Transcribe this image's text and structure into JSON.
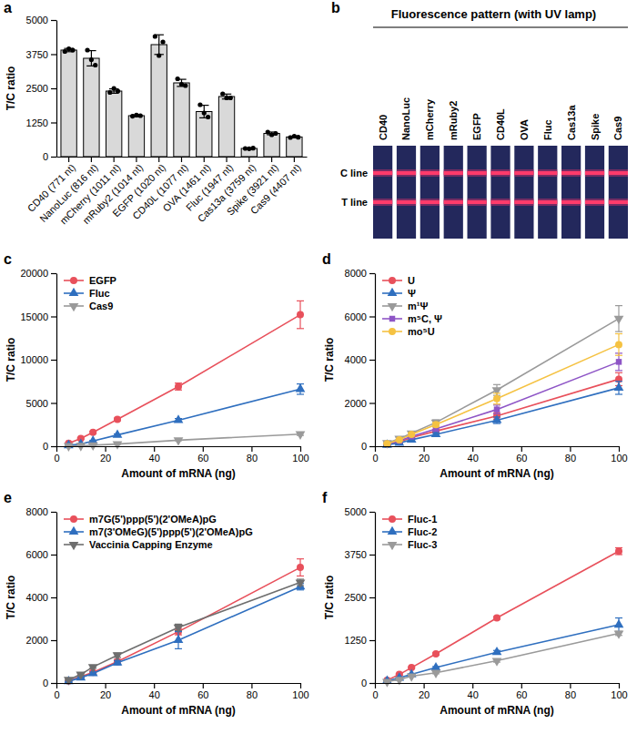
{
  "chart_data": [
    {
      "panel": "a",
      "type": "bar",
      "categories": [
        "CD40 (771 nt)",
        "NanoLuc (816 nt)",
        "mCherry (1011 nt)",
        "mRuby2 (1014 nt)",
        "EGFP (1020 nt)",
        "CD40L (1077 nt)",
        "OVA (1461 nt)",
        "Fluc (1947 nt)",
        "Cas13a (3759 nt)",
        "Spike (3921 nt)",
        "Cas9 (4407 nt)"
      ],
      "values": [
        3900,
        3600,
        2400,
        1500,
        4100,
        2700,
        1650,
        2200,
        300,
        850,
        720
      ],
      "errors": [
        60,
        280,
        80,
        30,
        360,
        130,
        230,
        90,
        15,
        50,
        30
      ],
      "points": [
        [
          3850,
          3950,
          3900
        ],
        [
          3900,
          3550,
          3350
        ],
        [
          2350,
          2500,
          2400
        ],
        [
          1480,
          1520,
          1500
        ],
        [
          4400,
          3700,
          4200
        ],
        [
          2850,
          2650,
          2600
        ],
        [
          1900,
          1600,
          1450
        ],
        [
          2300,
          2150,
          2150
        ],
        [
          300,
          290,
          310
        ],
        [
          900,
          800,
          850
        ],
        [
          700,
          750,
          710
        ]
      ],
      "color": "#d9d9d9",
      "ylabel": "T/C ratio",
      "ylim": [
        0,
        5000
      ],
      "yticks": [
        0,
        1250,
        2500,
        3750,
        5000
      ]
    },
    {
      "panel": "b",
      "type": "strip",
      "title": "Fluorescence pattern (with UV lamp)",
      "categories": [
        "CD40",
        "NanoLuc",
        "mCherry",
        "mRuby2",
        "EGFP",
        "CD40L",
        "OVA",
        "Fluc",
        "Cas13a",
        "Spike",
        "Cas9"
      ],
      "annotations": [
        "C line",
        "T line"
      ]
    },
    {
      "panel": "c",
      "type": "line",
      "xlabel": "Amount of mRNA (ng)",
      "ylabel": "T/C ratio",
      "x": [
        5,
        10,
        15,
        25,
        50,
        100
      ],
      "xlim": [
        0,
        100
      ],
      "xticks": [
        0,
        20,
        40,
        60,
        80,
        100
      ],
      "ylim": [
        0,
        20000
      ],
      "yticks": [
        0,
        5000,
        10000,
        15000,
        20000
      ],
      "legend": "upper left",
      "series": [
        {
          "name": "EGFP",
          "color": "#e8505b",
          "marker": "circle",
          "values": [
            350,
            900,
            1600,
            3100,
            6900,
            15200
          ],
          "errors": [
            40,
            80,
            120,
            150,
            400,
            1600
          ]
        },
        {
          "name": "Fluc",
          "color": "#2f6fbf",
          "marker": "triangle",
          "values": [
            100,
            250,
            600,
            1300,
            3000,
            6600
          ],
          "errors": [
            20,
            40,
            80,
            120,
            200,
            600
          ]
        },
        {
          "name": "Cas9",
          "color": "#9a9a9a",
          "marker": "triangle-down",
          "values": [
            30,
            60,
            120,
            250,
            700,
            1400
          ],
          "errors": [
            10,
            15,
            20,
            40,
            60,
            150
          ]
        }
      ]
    },
    {
      "panel": "d",
      "type": "line",
      "xlabel": "Amount of mRNA (ng)",
      "ylabel": "T/C ratio",
      "x": [
        5,
        10,
        15,
        25,
        50,
        100
      ],
      "xlim": [
        0,
        100
      ],
      "xticks": [
        0,
        20,
        40,
        60,
        80,
        100
      ],
      "ylim": [
        0,
        8000
      ],
      "yticks": [
        0,
        2000,
        4000,
        6000,
        8000
      ],
      "legend": "upper left",
      "series": [
        {
          "name": "U",
          "color": "#e8505b",
          "marker": "circle",
          "values": [
            80,
            200,
            400,
            700,
            1400,
            3100
          ],
          "errors": [
            20,
            30,
            50,
            80,
            150,
            300
          ]
        },
        {
          "name": "Ψ",
          "color": "#2f6fbf",
          "marker": "triangle",
          "values": [
            60,
            150,
            300,
            550,
            1200,
            2700
          ],
          "errors": [
            20,
            30,
            50,
            80,
            150,
            300
          ]
        },
        {
          "name": "m¹Ψ",
          "color": "#9a9a9a",
          "marker": "triangle-down",
          "values": [
            150,
            350,
            600,
            1100,
            2600,
            5900
          ],
          "errors": [
            30,
            50,
            80,
            120,
            250,
            600
          ]
        },
        {
          "name": "m⁵C, Ψ",
          "color": "#8e55c6",
          "marker": "square",
          "values": [
            100,
            250,
            450,
            800,
            1700,
            3900
          ],
          "errors": [
            20,
            40,
            60,
            100,
            200,
            400
          ]
        },
        {
          "name": "mo⁵U",
          "color": "#f5c242",
          "marker": "circle",
          "values": [
            120,
            300,
            550,
            1000,
            2200,
            4700
          ],
          "errors": [
            20,
            40,
            70,
            100,
            250,
            500
          ]
        }
      ]
    },
    {
      "panel": "e",
      "type": "line",
      "xlabel": "Amount of mRNA (ng)",
      "ylabel": "T/C ratio",
      "x": [
        5,
        10,
        15,
        25,
        50,
        100
      ],
      "xlim": [
        0,
        100
      ],
      "xticks": [
        0,
        20,
        40,
        60,
        80,
        100
      ],
      "ylim": [
        0,
        8000
      ],
      "yticks": [
        0,
        2000,
        4000,
        6000,
        8000
      ],
      "legend": "upper left",
      "series": [
        {
          "name": "m7G(5')ppp(5')(2'OMeA)pG",
          "color": "#e8505b",
          "marker": "circle",
          "values": [
            100,
            300,
            500,
            1000,
            2400,
            5400
          ],
          "errors": [
            20,
            40,
            60,
            100,
            150,
            400
          ]
        },
        {
          "name": "m7(3'OMeG)(5')ppp(5')(2'OMeA)pG",
          "color": "#2f6fbf",
          "marker": "triangle",
          "values": [
            80,
            250,
            450,
            950,
            2000,
            4500
          ],
          "errors": [
            20,
            40,
            60,
            100,
            400,
            150
          ]
        },
        {
          "name": "Vaccinia Capping Enzyme",
          "color": "#6e6e6e",
          "marker": "triangle-down",
          "values": [
            150,
            400,
            750,
            1300,
            2600,
            4700
          ],
          "errors": [
            20,
            40,
            60,
            100,
            150,
            150
          ]
        }
      ]
    },
    {
      "panel": "f",
      "type": "line",
      "xlabel": "Amount of mRNA (ng)",
      "ylabel": "T/C ratio",
      "x": [
        5,
        10,
        15,
        25,
        50,
        100
      ],
      "xlim": [
        0,
        100
      ],
      "xticks": [
        0,
        20,
        40,
        60,
        80,
        100
      ],
      "ylim": [
        0,
        5000
      ],
      "yticks": [
        0,
        1250,
        2500,
        3750,
        5000
      ],
      "legend": "upper left",
      "series": [
        {
          "name": "Fluc-1",
          "color": "#e8505b",
          "marker": "circle",
          "values": [
            80,
            250,
            450,
            850,
            1900,
            3850
          ],
          "errors": [
            10,
            20,
            20,
            30,
            40,
            100
          ]
        },
        {
          "name": "Fluc-2",
          "color": "#2f6fbf",
          "marker": "triangle",
          "values": [
            60,
            150,
            250,
            450,
            900,
            1700
          ],
          "errors": [
            10,
            20,
            20,
            30,
            50,
            200
          ]
        },
        {
          "name": "Fluc-3",
          "color": "#9a9a9a",
          "marker": "triangle-down",
          "values": [
            40,
            100,
            200,
            300,
            650,
            1450
          ],
          "errors": [
            10,
            15,
            20,
            30,
            40,
            60
          ]
        }
      ]
    }
  ]
}
